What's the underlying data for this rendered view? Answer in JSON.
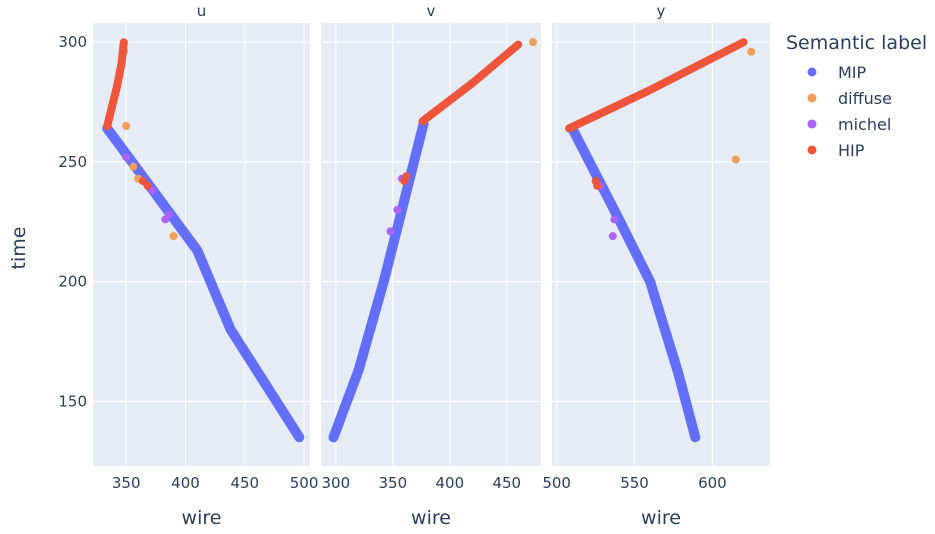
{
  "chart_data": {
    "type": "scatter",
    "x_title": "wire",
    "y_title": "time",
    "legend_title": "Semantic label",
    "legend_placement": "top-right",
    "grid": true,
    "colors": {
      "plot_bg": "#e5ecf6",
      "grid": "#ffffff"
    },
    "ylim": [
      123,
      308
    ],
    "y_ticks": [
      150,
      200,
      250,
      300
    ],
    "series": [
      {
        "name": "MIP",
        "color": "#636efa"
      },
      {
        "name": "diffuse",
        "color": "#ef9f5a"
      },
      {
        "name": "michel",
        "color": "#ab63fa"
      },
      {
        "name": "HIP",
        "color": "#ef553b"
      }
    ],
    "panels": [
      {
        "title": "u",
        "xlim": [
          322,
          505
        ],
        "x_ticks": [
          350,
          400,
          450,
          500
        ],
        "data": {
          "MIP": {
            "segments": [
              [
                [
                  334,
                  264
                ],
                [
                  410,
                  213
                ],
                [
                  438,
                  180
                ],
                [
                  496,
                  135
                ]
              ]
            ],
            "points": []
          },
          "HIP": {
            "segments": [
              [
                [
                  348,
                  300
                ],
                [
                  346,
                  291
                ],
                [
                  342,
                  281
                ],
                [
                  334,
                  265
                ]
              ]
            ],
            "points": [
              [
                364,
                242
              ],
              [
                368,
                240
              ]
            ]
          },
          "diffuse": {
            "segments": [],
            "points": [
              [
                350,
                265
              ],
              [
                348,
                296
              ],
              [
                356,
                248
              ],
              [
                390,
                219
              ],
              [
                360,
                243
              ]
            ]
          },
          "michel": {
            "segments": [],
            "points": [
              [
                350,
                252
              ],
              [
                383,
                226
              ],
              [
                386,
                228
              ],
              [
                372,
                238
              ]
            ]
          }
        }
      },
      {
        "title": "v",
        "xlim": [
          287,
          480
        ],
        "x_ticks": [
          300,
          350,
          400,
          450
        ],
        "data": {
          "MIP": {
            "segments": [
              [
                [
                  298,
                  135
                ],
                [
                  320,
                  163
                ],
                [
                  342,
                  200
                ],
                [
                  358,
                  230
                ],
                [
                  377,
                  266
                ]
              ]
            ],
            "points": []
          },
          "HIP": {
            "segments": [
              [
                [
                  376,
                  267
                ],
                [
                  420,
                  283
                ],
                [
                  460,
                  299
                ]
              ]
            ],
            "points": [
              [
                362,
                244
              ],
              [
                360,
                242
              ]
            ]
          },
          "diffuse": {
            "segments": [],
            "points": [
              [
                473,
                300
              ]
            ]
          },
          "michel": {
            "segments": [],
            "points": [
              [
                348,
                221
              ],
              [
                354,
                230
              ],
              [
                358,
                243
              ]
            ]
          }
        }
      },
      {
        "title": "y",
        "xlim": [
          497,
          637
        ],
        "x_ticks": [
          500,
          550,
          600
        ],
        "data": {
          "MIP": {
            "segments": [
              [
                [
                  510,
                  264
                ],
                [
                  540,
                  226
                ],
                [
                  560,
                  200
                ],
                [
                  578,
                  162
                ],
                [
                  589,
                  135
                ]
              ]
            ],
            "points": []
          },
          "HIP": {
            "segments": [
              [
                [
                  508,
                  264
                ],
                [
                  560,
                  280
                ],
                [
                  620,
                  300
                ]
              ]
            ],
            "points": [
              [
                525,
                242
              ],
              [
                526,
                240
              ]
            ]
          },
          "diffuse": {
            "segments": [],
            "points": [
              [
                625,
                296
              ],
              [
                615,
                251
              ]
            ]
          },
          "michel": {
            "segments": [],
            "points": [
              [
                536,
                219
              ],
              [
                537,
                226
              ],
              [
                528,
                240
              ]
            ]
          }
        }
      }
    ]
  }
}
